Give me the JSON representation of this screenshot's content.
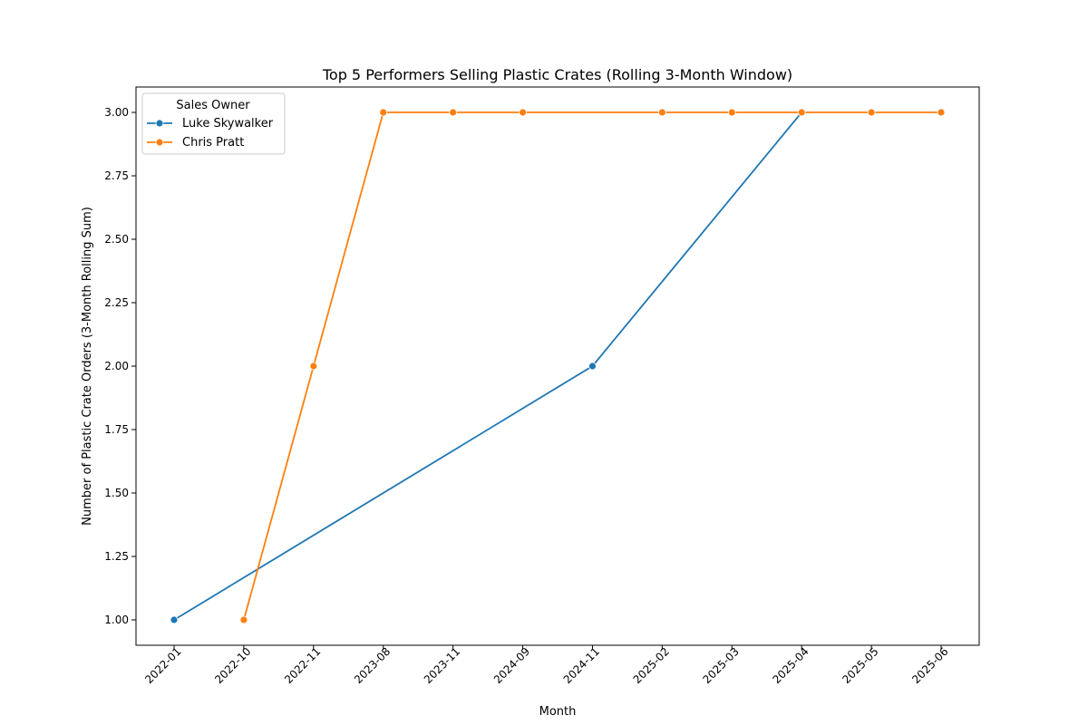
{
  "chart_data": {
    "type": "line",
    "title": "Top 5 Performers Selling Plastic Crates (Rolling 3-Month Window)",
    "xlabel": "Month",
    "ylabel": "Number of Plastic Crate Orders (3-Month Rolling Sum)",
    "categories": [
      "2022-01",
      "2022-10",
      "2022-11",
      "2023-08",
      "2023-11",
      "2024-09",
      "2024-11",
      "2025-02",
      "2025-03",
      "2025-04",
      "2025-05",
      "2025-06"
    ],
    "ylim": [
      0.9,
      3.1
    ],
    "yticks": [
      "1.00",
      "1.25",
      "1.50",
      "1.75",
      "2.00",
      "2.25",
      "2.50",
      "2.75",
      "3.00"
    ],
    "grid": false,
    "legend": {
      "title": "Sales Owner",
      "placement": "top-left"
    },
    "series": [
      {
        "name": "Luke Skywalker",
        "color": "#1f77b4",
        "points": [
          {
            "x": "2022-01",
            "y": 1
          },
          {
            "x": "2024-11",
            "y": 2
          },
          {
            "x": "2025-04",
            "y": 3
          }
        ]
      },
      {
        "name": "Chris Pratt",
        "color": "#ff7f0e",
        "points": [
          {
            "x": "2022-10",
            "y": 1
          },
          {
            "x": "2022-11",
            "y": 2
          },
          {
            "x": "2023-08",
            "y": 3
          },
          {
            "x": "2023-11",
            "y": 3
          },
          {
            "x": "2024-09",
            "y": 3
          },
          {
            "x": "2025-02",
            "y": 3
          },
          {
            "x": "2025-03",
            "y": 3
          },
          {
            "x": "2025-04",
            "y": 3
          },
          {
            "x": "2025-05",
            "y": 3
          },
          {
            "x": "2025-06",
            "y": 3
          }
        ]
      }
    ]
  }
}
